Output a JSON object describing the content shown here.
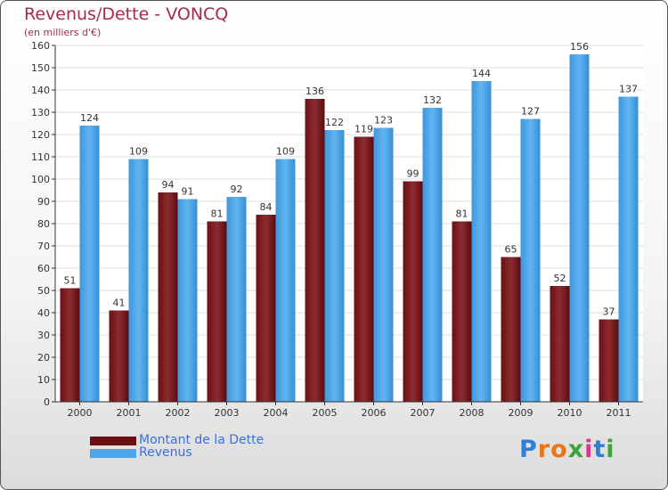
{
  "chart_data": {
    "type": "bar",
    "title": "Revenus/Dette - VONCQ",
    "subtitle": "(en milliers d'€)",
    "categories": [
      "2000",
      "2001",
      "2002",
      "2003",
      "2004",
      "2005",
      "2006",
      "2007",
      "2008",
      "2009",
      "2010",
      "2011"
    ],
    "series": [
      {
        "name": "Montant de la Dette",
        "color": "#7a1e22",
        "values": [
          51,
          41,
          94,
          81,
          84,
          136,
          119,
          99,
          81,
          65,
          52,
          37
        ]
      },
      {
        "name": "Revenus",
        "color": "#4ea6e8",
        "values": [
          124,
          109,
          91,
          92,
          109,
          122,
          123,
          132,
          144,
          127,
          156,
          137
        ]
      }
    ],
    "ylim": [
      0,
      160
    ],
    "yticks": [
      0,
      10,
      20,
      30,
      40,
      50,
      60,
      70,
      80,
      90,
      100,
      110,
      120,
      130,
      140,
      150,
      160
    ],
    "grid": true,
    "legend_position": "bottom-left"
  },
  "brand": {
    "letters": [
      "P",
      "r",
      "o",
      "x",
      "i",
      "t",
      "i"
    ],
    "colors": [
      "#2f7fd6",
      "#e8751a",
      "#e8751a",
      "#3aa53a",
      "#d63a8a",
      "#2f7fd6",
      "#3aa53a"
    ]
  }
}
